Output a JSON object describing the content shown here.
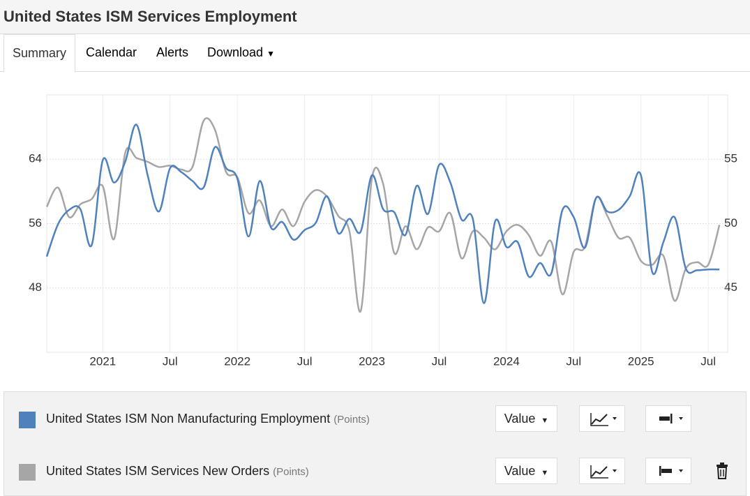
{
  "header": {
    "title": "United States ISM Services Employment"
  },
  "tabs": [
    "Summary",
    "Calendar",
    "Alerts",
    "Download"
  ],
  "chart_data": {
    "type": "line",
    "x": [
      "2020-08",
      "2020-09",
      "2020-10",
      "2020-11",
      "2020-12",
      "2021-01",
      "2021-02",
      "2021-03",
      "2021-04",
      "2021-05",
      "2021-06",
      "2021-07",
      "2021-08",
      "2021-09",
      "2021-10",
      "2021-11",
      "2021-12",
      "2022-01",
      "2022-02",
      "2022-03",
      "2022-04",
      "2022-05",
      "2022-06",
      "2022-07",
      "2022-08",
      "2022-09",
      "2022-10",
      "2022-11",
      "2022-12",
      "2023-01",
      "2023-02",
      "2023-03",
      "2023-04",
      "2023-05",
      "2023-06",
      "2023-07",
      "2023-08",
      "2023-09",
      "2023-10",
      "2023-11",
      "2023-12",
      "2024-01",
      "2024-02",
      "2024-03",
      "2024-04",
      "2024-05",
      "2024-06",
      "2024-07",
      "2024-08",
      "2024-09",
      "2024-10",
      "2024-11",
      "2024-12",
      "2025-01",
      "2025-02",
      "2025-03",
      "2025-04",
      "2025-05",
      "2025-06",
      "2025-07",
      "2025-08"
    ],
    "series": [
      {
        "name": "United States ISM Non Manufacturing Employment",
        "unit": "(Points)",
        "color": "#4f81bd",
        "axis": "y",
        "values": [
          51.9,
          55.9,
          57.7,
          57.8,
          53.3,
          63.9,
          61.1,
          63.7,
          68.3,
          62.0,
          57.5,
          62.9,
          62.4,
          61.3,
          60.5,
          65.5,
          62.9,
          61.6,
          54.4,
          61.3,
          55.5,
          56.2,
          54.0,
          55.2,
          56.1,
          59.4,
          54.8,
          56.6,
          55.0,
          62.0,
          57.8,
          57.4,
          54.6,
          60.7,
          57.2,
          63.3,
          61.1,
          56.5,
          56.6,
          46.1,
          56.3,
          53.1,
          53.7,
          49.4,
          51.1,
          49.8,
          57.7,
          56.8,
          53.0,
          59.2,
          57.5,
          57.7,
          59.4,
          62.0,
          50.0,
          53.7,
          56.8,
          50.4,
          50.2,
          50.3,
          50.3
        ]
      },
      {
        "name": "United States ISM Services New Orders",
        "unit": "(Points)",
        "color": "#a6a6a6",
        "axis": "y2",
        "values": [
          51.3,
          52.8,
          50.5,
          51.5,
          51.9,
          52.9,
          48.8,
          55.5,
          55.1,
          54.8,
          54.4,
          54.5,
          54.2,
          54.4,
          58.0,
          57.3,
          54.0,
          53.6,
          50.8,
          51.8,
          49.8,
          51.1,
          49.8,
          51.7,
          52.6,
          52.1,
          50.6,
          49.4,
          43.2,
          53.5,
          53.1,
          47.7,
          49.8,
          48.0,
          49.7,
          49.4,
          50.8,
          47.3,
          49.4,
          48.9,
          48.0,
          49.4,
          49.9,
          49.1,
          47.5,
          48.6,
          44.5,
          47.8,
          48.2,
          52.0,
          50.6,
          48.9,
          48.9,
          47.1,
          46.8,
          47.5,
          44.0,
          46.5,
          47.0,
          46.8,
          49.9
        ]
      }
    ],
    "ylim": [
      40,
      72
    ],
    "yticks": [
      48,
      56,
      64
    ],
    "y2lim": [
      40,
      60
    ],
    "y2ticks": [
      45,
      50,
      55
    ],
    "xticks": [
      {
        "value": "2021-01",
        "label": "2021"
      },
      {
        "value": "2021-07",
        "label": "Jul"
      },
      {
        "value": "2022-01",
        "label": "2022"
      },
      {
        "value": "2022-07",
        "label": "Jul"
      },
      {
        "value": "2023-01",
        "label": "2023"
      },
      {
        "value": "2023-07",
        "label": "Jul"
      },
      {
        "value": "2024-01",
        "label": "2024"
      },
      {
        "value": "2024-07",
        "label": "Jul"
      },
      {
        "value": "2025-01",
        "label": "2025"
      },
      {
        "value": "2025-07",
        "label": "Jul"
      }
    ],
    "grid": true
  },
  "controls": {
    "value_button": "Value"
  }
}
